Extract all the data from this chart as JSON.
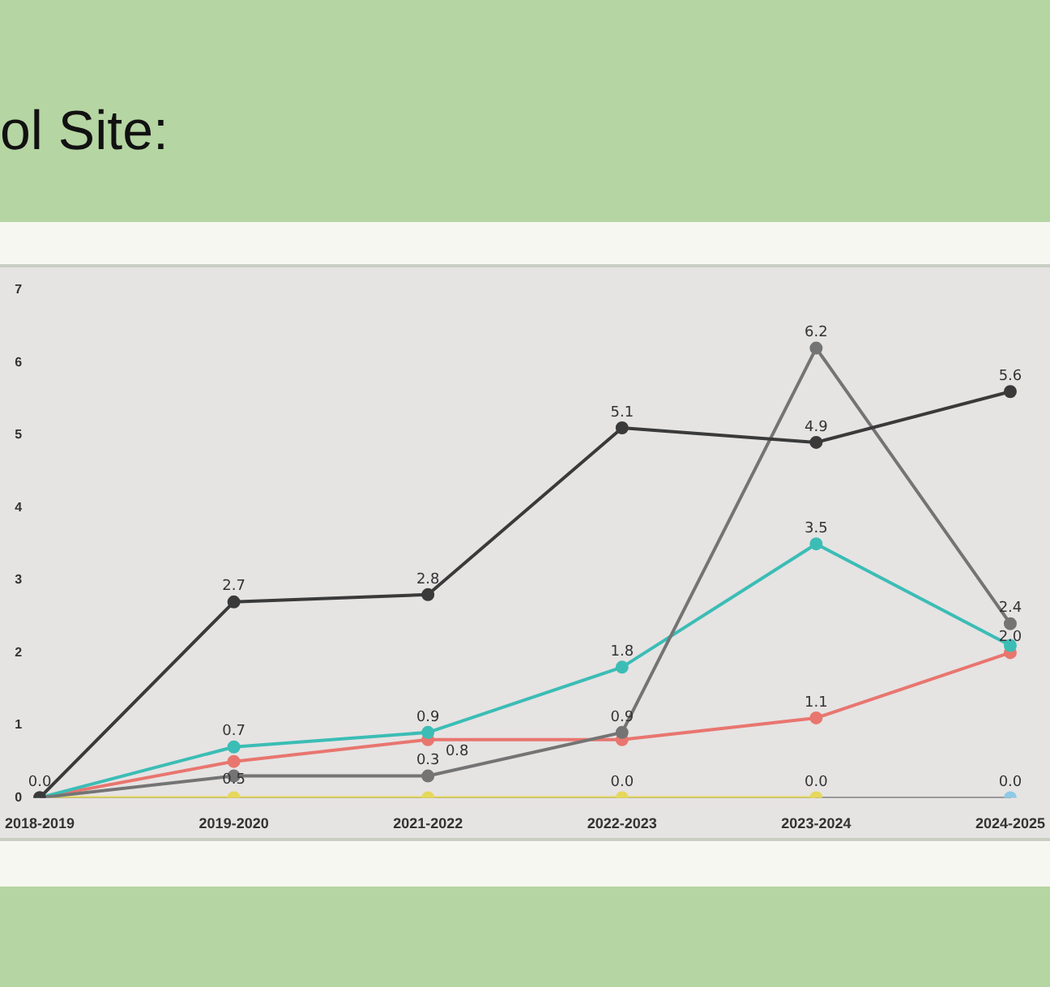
{
  "chart_data": {
    "type": "line",
    "title": "ol Site:",
    "categories": [
      "2018-2019",
      "2019-2020",
      "2021-2022",
      "2022-2023",
      "2023-2024",
      "2024-2025"
    ],
    "series": [
      {
        "color": "#3a3a3a",
        "values": [
          0.0,
          2.7,
          2.8,
          5.1,
          4.9,
          5.6
        ],
        "value_labels": [
          "0.0",
          "2.7",
          "2.8",
          "5.1",
          "4.9",
          "5.6"
        ]
      },
      {
        "color": "#747474",
        "values": [
          0.0,
          0.3,
          0.3,
          0.9,
          6.2,
          2.4
        ],
        "value_labels": [
          null,
          null,
          "0.3",
          "0.9",
          "6.2",
          "2.4"
        ]
      },
      {
        "color": "#3bbdb5",
        "values": [
          0.0,
          0.7,
          0.9,
          1.8,
          3.5,
          2.1
        ],
        "value_labels": [
          null,
          "0.7",
          "0.9",
          "1.8",
          "3.5",
          null
        ]
      },
      {
        "color": "#e8766f",
        "values": [
          0.0,
          0.5,
          0.8,
          0.8,
          1.1,
          2.0
        ],
        "value_labels": [
          null,
          "0.5",
          "0.8",
          null,
          "1.1",
          "2.0"
        ]
      },
      {
        "color": "#e6d85a",
        "values": [
          0.0,
          0.0,
          0.0,
          0.0,
          0.0,
          null
        ],
        "value_labels": [
          null,
          null,
          null,
          "0.0",
          "0.0",
          null
        ]
      },
      {
        "color": "#8ecae6",
        "values": [
          null,
          null,
          null,
          null,
          null,
          0.0
        ],
        "value_labels": [
          null,
          null,
          null,
          null,
          null,
          "0.0"
        ]
      }
    ],
    "ylim": [
      0,
      7
    ],
    "yticks": [
      0,
      1,
      2,
      3,
      4,
      5,
      6,
      7
    ],
    "grid": false,
    "legend": false,
    "marker": "circle",
    "line_style": "solid"
  }
}
